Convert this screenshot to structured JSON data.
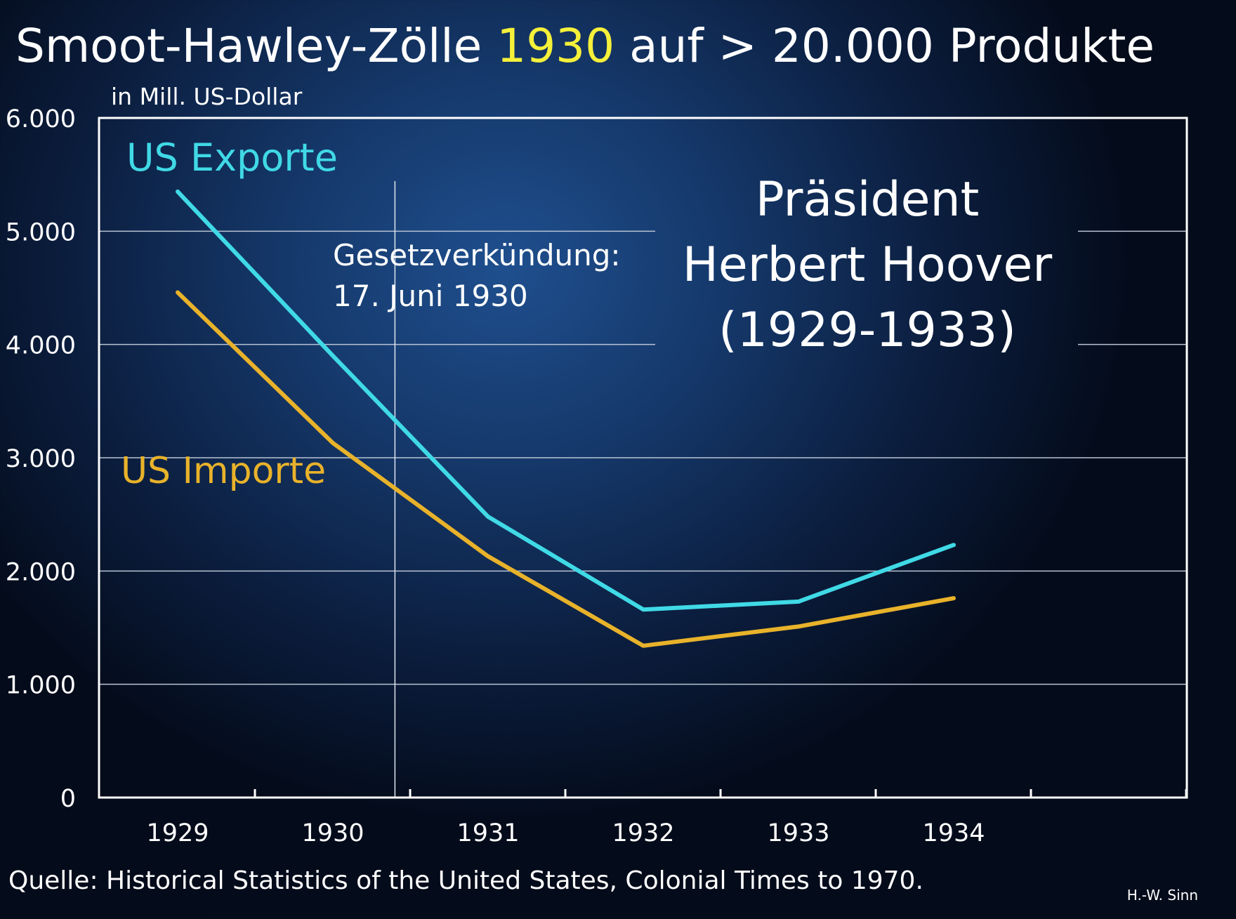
{
  "title": {
    "part1": "Smoot-Hawley-Zölle ",
    "highlight": "1930",
    "part2": " auf > 20.000 Produkte"
  },
  "source": "Quelle: Historical Statistics of the United States, Colonial Times to 1970.",
  "author": "H.-W. Sinn",
  "colors": {
    "text": "#ffffff",
    "highlight": "#f5f03a",
    "exports": "#40d9e6",
    "imports": "#e8b22a",
    "grid": "#b9c4d4",
    "axis": "#ffffff"
  },
  "chart_data": {
    "type": "line",
    "ylabel": "in Mill. US-Dollar",
    "ylim": [
      0,
      6000
    ],
    "xlim": [
      1929,
      1935
    ],
    "yticks": [
      {
        "value": 0,
        "label": "0"
      },
      {
        "value": 1000,
        "label": "1.000"
      },
      {
        "value": 2000,
        "label": "2.000"
      },
      {
        "value": 3000,
        "label": "3.000"
      },
      {
        "value": 4000,
        "label": "4.000"
      },
      {
        "value": 5000,
        "label": "5.000"
      },
      {
        "value": 6000,
        "label": "6.000"
      }
    ],
    "categories": [
      "1929",
      "1930",
      "1931",
      "1932",
      "1933",
      "1934"
    ],
    "x": [
      1929,
      1930,
      1931,
      1932,
      1933,
      1934
    ],
    "series": [
      {
        "name": "US Exporte",
        "key": "exports",
        "values": [
          5350,
          3900,
          2480,
          1660,
          1730,
          2230
        ]
      },
      {
        "name": "US Importe",
        "key": "imports",
        "values": [
          4460,
          3130,
          2130,
          1340,
          1510,
          1760
        ]
      }
    ],
    "annotations": {
      "law": {
        "x": 1930.4,
        "line1": "Gesetzverkündung:",
        "line2": "17. Juni 1930"
      },
      "president": {
        "line1": "Präsident",
        "line2": "Herbert Hoover",
        "line3": "(1929-1933)"
      }
    },
    "grid": true
  }
}
